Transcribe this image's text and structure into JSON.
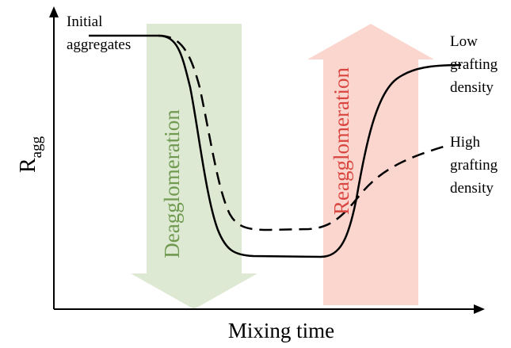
{
  "axes": {
    "y_label": {
      "main": "R",
      "subscript": "agg"
    },
    "x_label": "Mixing time"
  },
  "arrows": [
    {
      "label": "Deagglomeration"
    },
    {
      "label": "Reagglomeration"
    }
  ],
  "annotations": [
    {
      "lines": [
        "Initial",
        "aggregates"
      ]
    },
    {
      "lines": [
        "Low",
        "grafting",
        "density"
      ]
    },
    {
      "lines": [
        "High",
        "grafting",
        "density"
      ]
    }
  ]
}
